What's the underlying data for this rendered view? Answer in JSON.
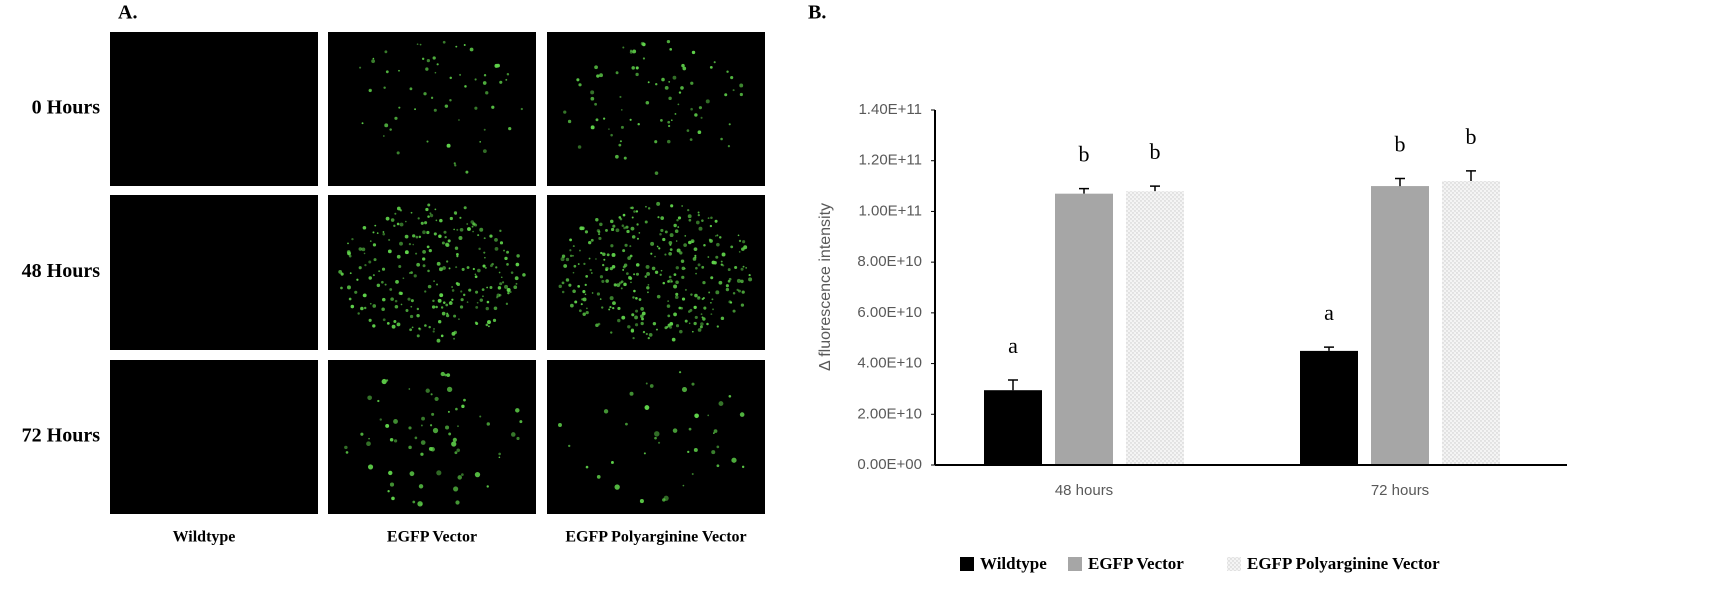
{
  "panel_a": {
    "label": "A.",
    "rows": [
      "0 Hours",
      "48 Hours",
      "72 Hours"
    ],
    "columns": [
      "Wildtype",
      "EGFP Vector",
      "EGFP Polyarginine Vector"
    ]
  },
  "chart_data": {
    "type": "bar",
    "panel_label": "B.",
    "y_label": "Δ fluorescence  intensity",
    "categories": [
      "48 hours",
      "72 hours"
    ],
    "series": [
      {
        "name": "Wildtype",
        "color": "#000000",
        "values": [
          29500000000,
          45000000000
        ],
        "errors": [
          4000000000,
          1500000000
        ],
        "letters": [
          "a",
          "a"
        ]
      },
      {
        "name": "EGFP Vector",
        "color": "#a6a6a6",
        "values": [
          107000000000,
          110000000000
        ],
        "errors": [
          2000000000,
          3000000000
        ],
        "letters": [
          "b",
          "b"
        ]
      },
      {
        "name": "EGFP Polyarginine Vector",
        "color": "#ededed",
        "values": [
          108000000000,
          112000000000
        ],
        "errors": [
          2000000000,
          4000000000
        ],
        "letters": [
          "b",
          "b"
        ]
      }
    ],
    "ylim": [
      0,
      140000000000
    ],
    "yticks": [
      {
        "value": 0,
        "label": "0.00E+00"
      },
      {
        "value": 20000000000,
        "label": "2.00E+10"
      },
      {
        "value": 40000000000,
        "label": "4.00E+10"
      },
      {
        "value": 60000000000,
        "label": "6.00E+10"
      },
      {
        "value": 80000000000,
        "label": "8.00E+10"
      },
      {
        "value": 100000000000,
        "label": "1.00E+11"
      },
      {
        "value": 120000000000,
        "label": "1.20E+11"
      },
      {
        "value": 140000000000,
        "label": "1.40E+11"
      }
    ]
  }
}
